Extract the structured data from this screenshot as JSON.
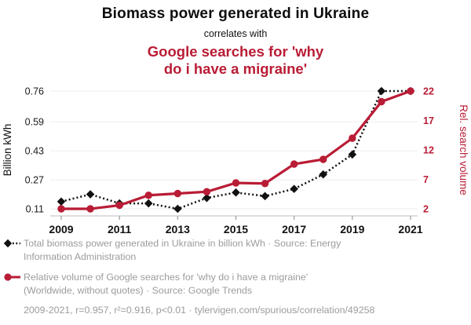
{
  "header": {
    "title": "Biomass power generated in Ukraine",
    "connector": "correlates with",
    "correlate_lines": [
      "Google searches for 'why",
      "do i have a migraine'"
    ]
  },
  "chart_data": {
    "type": "line",
    "x": [
      2009,
      2010,
      2011,
      2012,
      2013,
      2014,
      2015,
      2016,
      2017,
      2018,
      2019,
      2020,
      2021
    ],
    "x_ticks": [
      2009,
      2011,
      2013,
      2015,
      2017,
      2019,
      2021
    ],
    "left_axis": {
      "label": "Billion kWh",
      "min": 0.11,
      "max": 0.76,
      "ticks": [
        "0.76",
        "0.59",
        "0.43",
        "0.27",
        "0.11"
      ]
    },
    "right_axis": {
      "label": "Rel. search volume",
      "min": 2,
      "max": 22,
      "ticks": [
        "22",
        "17",
        "12",
        "7",
        "2"
      ]
    },
    "grid": true,
    "legend_position": "bottom",
    "series": [
      {
        "name": "Total biomass power generated in Ukraine in billion kWh",
        "axis": "left",
        "style": "dashed",
        "marker": "diamond",
        "color": "#111111",
        "values": [
          0.15,
          0.19,
          0.14,
          0.14,
          0.11,
          0.17,
          0.2,
          0.18,
          0.22,
          0.3,
          0.41,
          0.76,
          0.76
        ]
      },
      {
        "name": "Relative volume of Google searches for 'why do i have a migraine'",
        "axis": "right",
        "style": "solid",
        "marker": "circle",
        "color": "#b91c35",
        "values": [
          2,
          2,
          2.6,
          4.3,
          4.6,
          4.9,
          6.4,
          6.3,
          9.6,
          10.4,
          14,
          20.2,
          22
        ]
      }
    ]
  },
  "legend": {
    "items": [
      {
        "lines": [
          "Total biomass power generated in Ukraine in billion kWh · Source: Energy",
          "Information Administration"
        ]
      },
      {
        "lines": [
          "Relative volume of Google searches for 'why do i have a migraine'",
          "(Worldwide, without quotes) · Source: Google Trends"
        ]
      }
    ],
    "footer": "2009-2021, r=0.957, r²=0.916, p<0.01 · tylervigen.com/spurious/correlation/49258"
  },
  "colors": {
    "accent_red": "#b91c35",
    "series_black": "#111111",
    "legend_gray": "#9c9c9c",
    "gridline": "#eeeeee",
    "axis_line": "#c9c9c9"
  }
}
